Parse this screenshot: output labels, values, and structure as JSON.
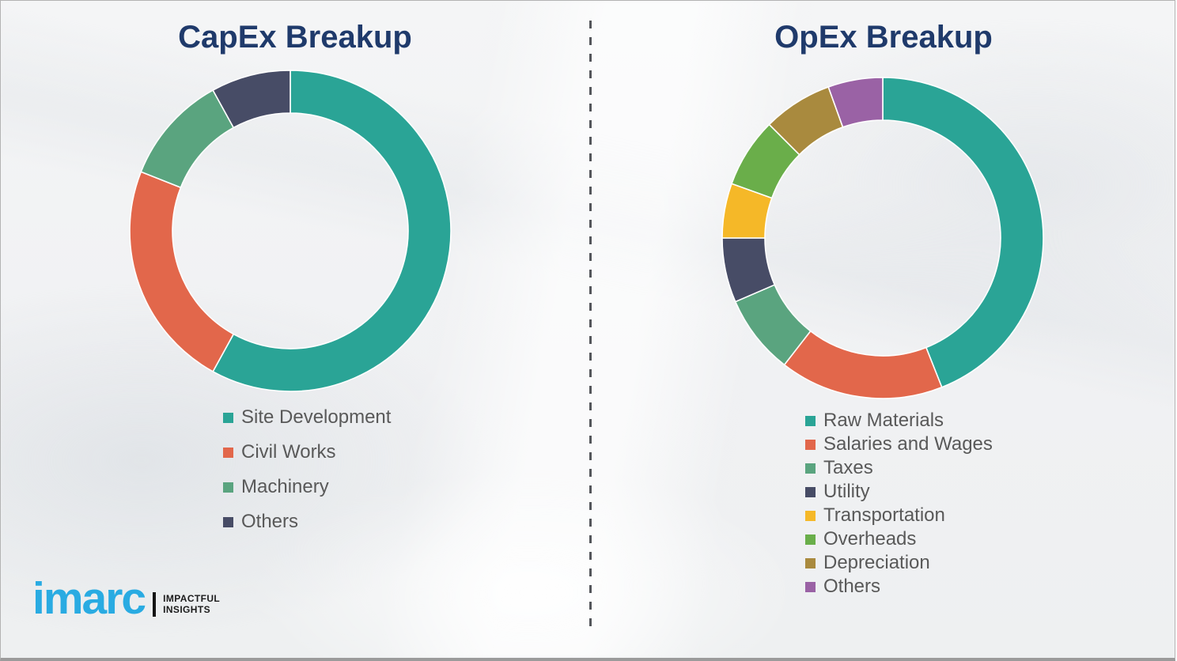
{
  "page": {
    "background_color": "#f1f2f3",
    "divider_color": "#54565b",
    "title_color": "#1f3a6b",
    "legend_text_color": "#595959"
  },
  "branding": {
    "logo_text": "imarc",
    "tagline_line1": "IMPACTFUL",
    "tagline_line2": "INSIGHTS",
    "logo_color": "#29abe2"
  },
  "chart_data": [
    {
      "type": "pie",
      "subtype": "donut",
      "title": "CapEx Breakup",
      "legend_position": "below-left",
      "start_angle_deg": 0,
      "direction": "clockwise",
      "unit": "% (estimated from arc angles; no data labels shown)",
      "categories": [
        "Site Development",
        "Civil Works",
        "Machinery",
        "Others"
      ],
      "values": [
        58,
        23,
        11,
        8
      ],
      "colors": [
        "#2aa496",
        "#e2674b",
        "#5aa47f",
        "#474c66"
      ]
    },
    {
      "type": "pie",
      "subtype": "donut",
      "title": "OpEx Breakup",
      "legend_position": "below-left",
      "start_angle_deg": 0,
      "direction": "clockwise",
      "unit": "% (estimated from arc angles; no data labels shown)",
      "categories": [
        "Raw Materials",
        "Salaries and Wages",
        "Taxes",
        "Utility",
        "Transportation",
        "Overheads",
        "Depreciation",
        "Others"
      ],
      "values": [
        44,
        16.5,
        8,
        6.5,
        5.5,
        7,
        7,
        5.5
      ],
      "colors": [
        "#2aa496",
        "#e2674b",
        "#5aa47f",
        "#474c66",
        "#f5b828",
        "#6aae4a",
        "#a98a3e",
        "#9a62a5"
      ]
    }
  ]
}
